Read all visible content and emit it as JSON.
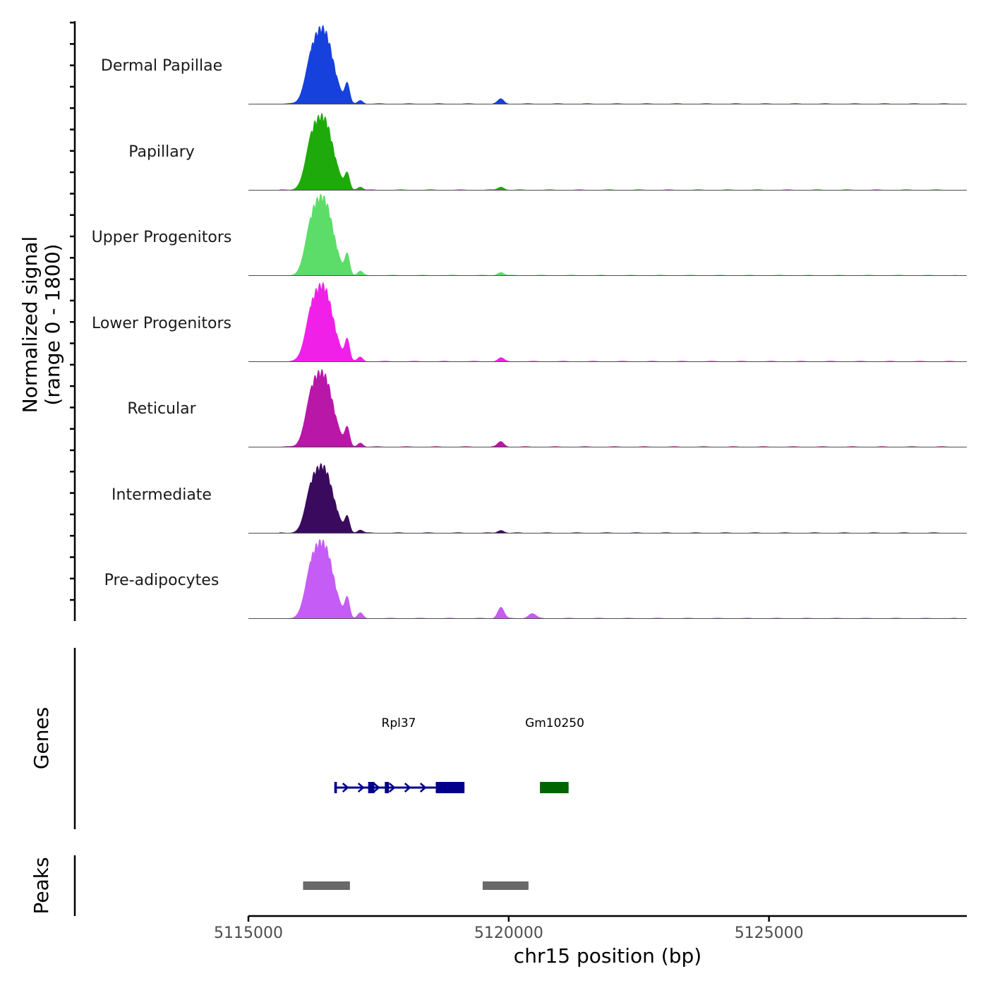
{
  "chart_data": {
    "type": "area",
    "chromosome": "chr15",
    "xlabel": "chr15 position (bp)",
    "ylabel_line1": "Normalized signal",
    "ylabel_line2": "(range 0 - 1800)",
    "xlim": [
      5115000,
      5128800
    ],
    "ylim": [
      0,
      1800
    ],
    "x_ticks": [
      {
        "value": 5115000,
        "label": "5115000"
      },
      {
        "value": 5120000,
        "label": "5120000"
      },
      {
        "value": 5125000,
        "label": "5125000"
      }
    ],
    "coverage_tracks": [
      {
        "name": "Dermal Papillae",
        "color": "#1641DC",
        "peak_max": 1750,
        "peaks": [
          [
            5116450,
            1650,
            180
          ],
          [
            5116200,
            600,
            120
          ],
          [
            5116900,
            400,
            45
          ],
          [
            5117150,
            80,
            50
          ],
          [
            5119850,
            110,
            60
          ]
        ]
      },
      {
        "name": "Papillary",
        "color": "#1EAA0A",
        "peak_max": 1740,
        "peaks": [
          [
            5116450,
            1600,
            180
          ],
          [
            5116200,
            650,
            120
          ],
          [
            5116900,
            330,
            45
          ],
          [
            5117150,
            70,
            50
          ],
          [
            5119850,
            70,
            60
          ]
        ]
      },
      {
        "name": "Upper Progenitors",
        "color": "#5CDD6A",
        "peak_max": 1800,
        "peaks": [
          [
            5116450,
            1700,
            180
          ],
          [
            5116200,
            700,
            120
          ],
          [
            5116900,
            430,
            45
          ],
          [
            5117150,
            90,
            50
          ],
          [
            5119850,
            70,
            60
          ]
        ]
      },
      {
        "name": "Lower Progenitors",
        "color": "#F020E8",
        "peak_max": 1780,
        "peaks": [
          [
            5116450,
            1650,
            180
          ],
          [
            5116200,
            650,
            120
          ],
          [
            5116900,
            450,
            45
          ],
          [
            5117150,
            100,
            50
          ],
          [
            5119850,
            80,
            60
          ]
        ]
      },
      {
        "name": "Reticular",
        "color": "#B817A8",
        "peak_max": 1720,
        "peaks": [
          [
            5116450,
            1600,
            180
          ],
          [
            5116200,
            700,
            120
          ],
          [
            5116900,
            380,
            45
          ],
          [
            5117150,
            90,
            50
          ],
          [
            5119850,
            120,
            60
          ]
        ]
      },
      {
        "name": "Intermediate",
        "color": "#3A0A5E",
        "peak_max": 1580,
        "peaks": [
          [
            5116450,
            1450,
            180
          ],
          [
            5116200,
            600,
            120
          ],
          [
            5116900,
            330,
            45
          ],
          [
            5117150,
            70,
            50
          ],
          [
            5119850,
            60,
            60
          ]
        ]
      },
      {
        "name": "Pre-adipocytes",
        "color": "#C55CF5",
        "peak_max": 1800,
        "peaks": [
          [
            5116450,
            1650,
            180
          ],
          [
            5116200,
            700,
            120
          ],
          [
            5116900,
            420,
            45
          ],
          [
            5117150,
            120,
            50
          ],
          [
            5119850,
            250,
            60
          ],
          [
            5120450,
            110,
            70
          ]
        ]
      }
    ],
    "genes_track_label": "Genes",
    "genes": [
      {
        "name": "Rpl37",
        "start": 5116650,
        "end": 5119150,
        "strand": "+",
        "color": "#00008B",
        "exons": [
          [
            5116650,
            5116700
          ],
          [
            5117300,
            5117420
          ],
          [
            5117620,
            5117700
          ],
          [
            5118600,
            5119150
          ]
        ]
      },
      {
        "name": "Gm10250",
        "start": 5120600,
        "end": 5121150,
        "strand": "+",
        "color": "#006400",
        "exons": [
          [
            5120600,
            5121150
          ]
        ]
      }
    ],
    "peaks_track_label": "Peaks",
    "peak_regions": [
      {
        "start": 5116050,
        "end": 5116950
      },
      {
        "start": 5119500,
        "end": 5120380
      }
    ],
    "peak_region_color": "#696969"
  }
}
